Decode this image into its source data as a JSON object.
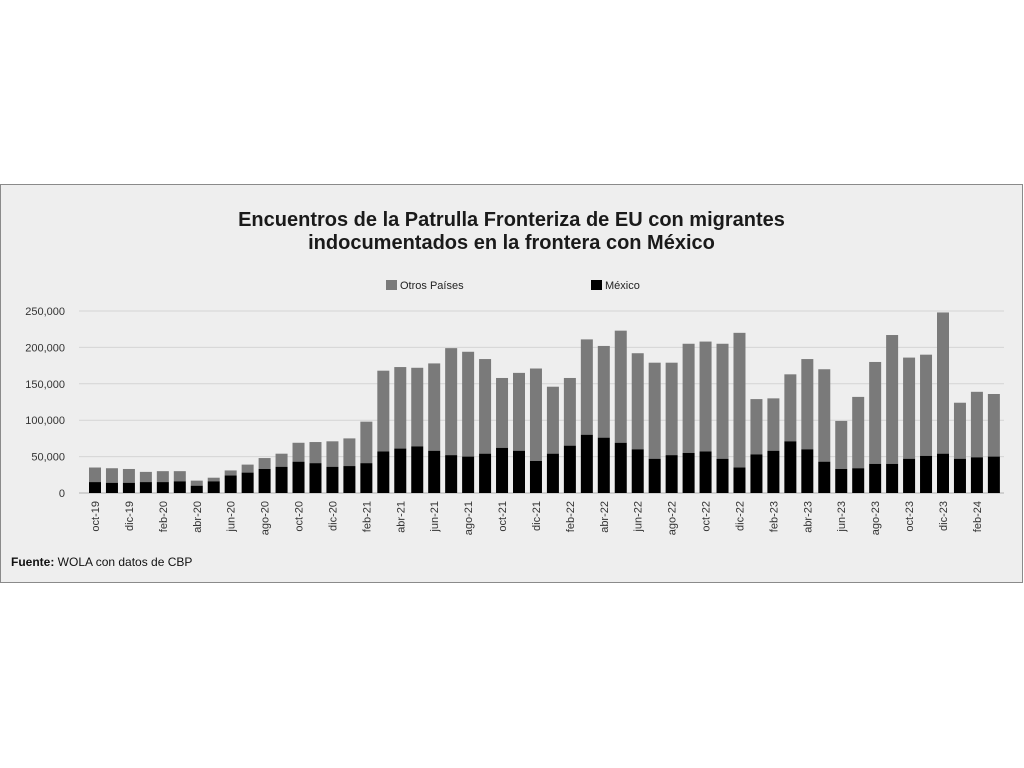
{
  "chart_data": {
    "type": "bar",
    "stacked": true,
    "title_lines": [
      "Encuentros de la Patrulla Fronteriza de EU con migrantes",
      "indocumentados en la frontera con México"
    ],
    "legend": [
      "Otros Países",
      "México"
    ],
    "legend_position": "top-center",
    "ylim": [
      0,
      250000
    ],
    "y_ticks": [
      "0",
      "50,000",
      "100,000",
      "150,000",
      "200,000",
      "250,000"
    ],
    "grid": true,
    "categories": [
      "oct-19",
      "nov-19",
      "dic-19",
      "ene-20",
      "feb-20",
      "mar-20",
      "abr-20",
      "may-20",
      "jun-20",
      "jul-20",
      "ago-20",
      "sep-20",
      "oct-20",
      "nov-20",
      "dic-20",
      "ene-21",
      "feb-21",
      "mar-21",
      "abr-21",
      "may-21",
      "jun-21",
      "jul-21",
      "ago-21",
      "sep-21",
      "oct-21",
      "nov-21",
      "dic-21",
      "ene-22",
      "feb-22",
      "mar-22",
      "abr-22",
      "may-22",
      "jun-22",
      "jul-22",
      "ago-22",
      "sep-22",
      "oct-22",
      "nov-22",
      "dic-22",
      "ene-23",
      "feb-23",
      "mar-23",
      "abr-23",
      "may-23",
      "jun-23",
      "jul-23",
      "ago-23",
      "sep-23",
      "oct-23",
      "nov-23",
      "dic-23",
      "ene-24",
      "feb-24",
      "mar-24"
    ],
    "x_tick_labels": [
      "oct-19",
      "",
      "dic-19",
      "",
      "feb-20",
      "",
      "abr-20",
      "",
      "jun-20",
      "",
      "ago-20",
      "",
      "oct-20",
      "",
      "dic-20",
      "",
      "feb-21",
      "",
      "abr-21",
      "",
      "jun-21",
      "",
      "ago-21",
      "",
      "oct-21",
      "",
      "dic-21",
      "",
      "feb-22",
      "",
      "abr-22",
      "",
      "jun-22",
      "",
      "ago-22",
      "",
      "oct-22",
      "",
      "dic-22",
      "",
      "feb-23",
      "",
      "abr-23",
      "",
      "jun-23",
      "",
      "ago-23",
      "",
      "oct-23",
      "",
      "dic-23",
      "",
      "feb-24",
      ""
    ],
    "series": [
      {
        "name": "México",
        "color": "#000000",
        "values": [
          15000,
          14000,
          14000,
          15000,
          15000,
          16000,
          10000,
          16000,
          24000,
          28000,
          33000,
          36000,
          43000,
          41000,
          36000,
          37000,
          41000,
          57000,
          61000,
          64000,
          58000,
          52000,
          50000,
          54000,
          62000,
          58000,
          44000,
          54000,
          65000,
          80000,
          76000,
          69000,
          60000,
          47000,
          52000,
          55000,
          57000,
          47000,
          35000,
          53000,
          58000,
          71000,
          60000,
          43000,
          33000,
          34000,
          40000,
          40000,
          47000,
          51000,
          54000,
          47000,
          49000,
          50000
        ]
      },
      {
        "name": "Otros Países",
        "color": "#7a7a7a",
        "values": [
          20000,
          20000,
          19000,
          14000,
          15000,
          14000,
          7000,
          5000,
          7000,
          11000,
          15000,
          18000,
          26000,
          29000,
          35000,
          38000,
          57000,
          111000,
          112000,
          108000,
          120000,
          147000,
          144000,
          130000,
          96000,
          107000,
          127000,
          92000,
          93000,
          131000,
          126000,
          154000,
          132000,
          132000,
          127000,
          150000,
          151000,
          158000,
          185000,
          76000,
          72000,
          92000,
          124000,
          127000,
          66000,
          98000,
          140000,
          177000,
          139000,
          139000,
          194000,
          77000,
          90000,
          86000
        ]
      }
    ]
  },
  "source": {
    "label": "Fuente:",
    "text": " WOLA con datos de CBP"
  }
}
